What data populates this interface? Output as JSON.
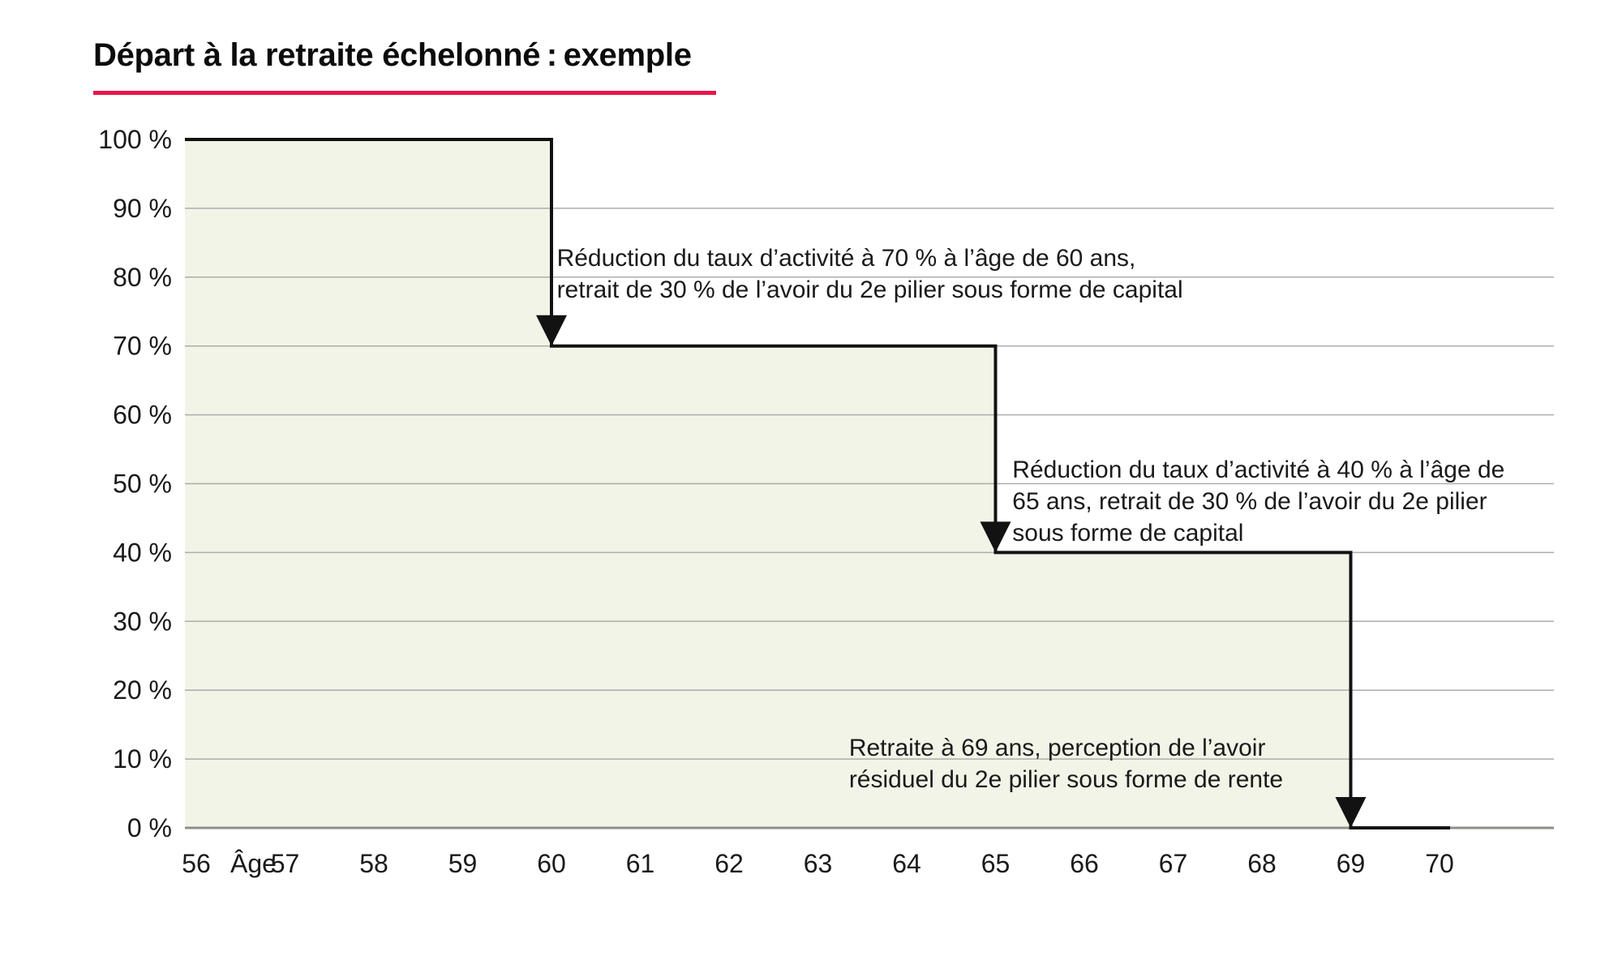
{
  "header": {
    "title": "Départ à la retraite échelonné : exemple",
    "underline_color": "#e6164b"
  },
  "chart_data": {
    "type": "area",
    "subtype": "step",
    "title": "Départ à la retraite échelonné : exemple",
    "xlabel": "Âge",
    "ylabel": "",
    "xlim": [
      56,
      70
    ],
    "ylim": [
      0,
      100
    ],
    "grid": true,
    "legend": "none",
    "x": [
      56,
      60,
      60,
      65,
      65,
      69,
      69,
      70
    ],
    "y": [
      100,
      100,
      70,
      70,
      40,
      40,
      0,
      0
    ],
    "x_tick_labels": [
      "56",
      "57",
      "58",
      "59",
      "60",
      "61",
      "62",
      "63",
      "64",
      "65",
      "66",
      "67",
      "68",
      "69",
      "70"
    ],
    "x_axis_label": "Âge",
    "y_tick_labels": [
      "0 %",
      "10 %",
      "20 %",
      "30 %",
      "40 %",
      "50 %",
      "60 %",
      "70 %",
      "80 %",
      "90 %",
      "100 %"
    ],
    "drops": [
      {
        "age": 60,
        "from_pct": 100,
        "to_pct": 70
      },
      {
        "age": 65,
        "from_pct": 70,
        "to_pct": 40
      },
      {
        "age": 69,
        "from_pct": 40,
        "to_pct": 0
      }
    ],
    "fill_color": "#f2f4e8",
    "line_color": "#121212",
    "grid_color": "#adada8",
    "baseline_color": "#8e8e88",
    "text_color": "#1a1a1a",
    "annotations": [
      {
        "anchor": {
          "age": 60.06,
          "pct": 85.0
        },
        "lines": [
          "Réduction du taux d’activité à 70 % à l’âge de 60 ans,",
          "retrait de 30 % de l’avoir du 2e pilier sous forme de capital"
        ]
      },
      {
        "anchor": {
          "age": 65.19,
          "pct": 54.3
        },
        "lines": [
          "Réduction du taux d’activité à 40 % à l’âge de",
          "65 ans, retrait de 30 % de l’avoir du 2e pilier",
          "sous forme de capital"
        ]
      },
      {
        "anchor": {
          "age": 63.35,
          "pct": 13.9
        },
        "lines": [
          "Retraite à 69 ans, perception de l’avoir",
          "résiduel du 2e pilier sous forme de rente"
        ]
      }
    ]
  }
}
